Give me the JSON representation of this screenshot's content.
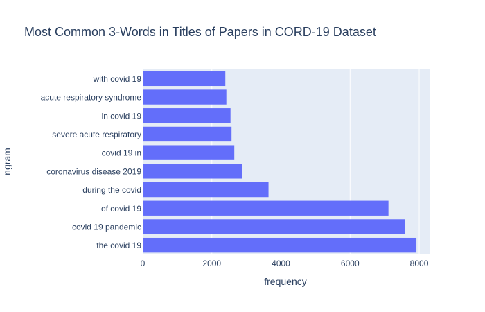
{
  "chart_data": {
    "type": "bar",
    "orientation": "horizontal",
    "title": "Most Common 3-Words in Titles of Papers in CORD-19 Dataset",
    "xlabel": "frequency",
    "ylabel": "ngram",
    "xlim": [
      0,
      8300
    ],
    "x_ticks": [
      0,
      2000,
      4000,
      6000,
      8000
    ],
    "grid": true,
    "colors": {
      "bar": "#636efa",
      "plot_bg": "#e5ecf6",
      "grid": "#ffffff",
      "text": "#2a3f5f"
    },
    "categories": [
      "with covid 19",
      "acute respiratory syndrome",
      "in covid 19",
      "severe acute respiratory",
      "covid 19 in",
      "coronavirus disease 2019",
      "during the covid",
      "of covid 19",
      "covid 19 pandemic",
      "the covid 19"
    ],
    "values": [
      2390,
      2420,
      2540,
      2570,
      2650,
      2880,
      3640,
      7110,
      7580,
      7920
    ]
  }
}
